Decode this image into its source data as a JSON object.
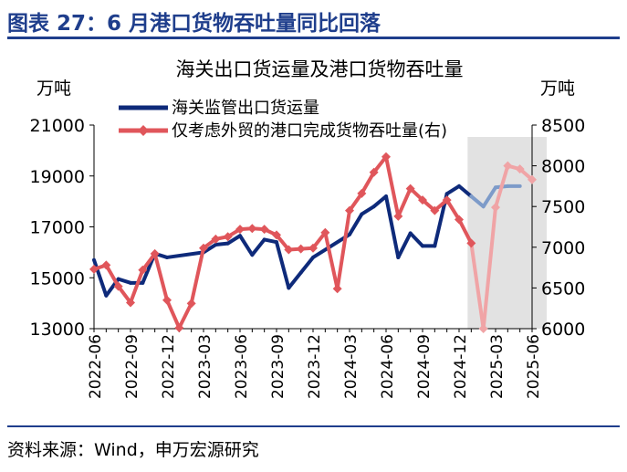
{
  "figure": {
    "title": "图表 27：6 月港口货物吞吐量同比回落",
    "source": "资料来源：Wind，申万宏源研究"
  },
  "chart_data": {
    "type": "line",
    "title": "海关出口货运量及港口货物吞吐量",
    "y_left_unit": "万吨",
    "y_right_unit": "万吨",
    "y_left_range": [
      13000,
      21000
    ],
    "y_left_ticks": [
      "13000",
      "15000",
      "17000",
      "19000",
      "21000"
    ],
    "y_right_range": [
      6000,
      8500
    ],
    "y_right_ticks": [
      "6000",
      "6500",
      "7000",
      "7500",
      "8000",
      "8500"
    ],
    "x_tick_labels": [
      "2022-06",
      "2022-09",
      "2022-12",
      "2023-03",
      "2023-06",
      "2023-09",
      "2023-12",
      "2024-03",
      "2024-06",
      "2024-09",
      "2024-12",
      "2025-03",
      "2025-06"
    ],
    "x": [
      "2022-06",
      "2022-07",
      "2022-08",
      "2022-09",
      "2022-10",
      "2022-11",
      "2022-12",
      "2023-01",
      "2023-02",
      "2023-03",
      "2023-04",
      "2023-05",
      "2023-06",
      "2023-07",
      "2023-08",
      "2023-09",
      "2023-10",
      "2023-11",
      "2023-12",
      "2024-01",
      "2024-02",
      "2024-03",
      "2024-04",
      "2024-05",
      "2024-06",
      "2024-07",
      "2024-08",
      "2024-09",
      "2024-10",
      "2024-11",
      "2024-12",
      "2025-01",
      "2025-02",
      "2025-03",
      "2025-04",
      "2025-05",
      "2025-06"
    ],
    "shaded_range": [
      "2025-01",
      "2025-06"
    ],
    "legend_position": "top-left",
    "series": [
      {
        "name": "海关监管出口货运量",
        "axis": "left",
        "color": "#0e2a7a",
        "faded_color": "#7d9bc9",
        "marker": "none",
        "values": [
          15700,
          14300,
          14950,
          14800,
          14800,
          15950,
          15800,
          null,
          null,
          16000,
          16300,
          16350,
          16650,
          15900,
          16500,
          16400,
          14600,
          15200,
          15800,
          null,
          null,
          16700,
          17500,
          17800,
          18200,
          15800,
          16750,
          16250,
          16250,
          18300,
          18600,
          18200,
          17800,
          18550,
          18600,
          18600,
          null
        ]
      },
      {
        "name": "仅考虑外贸的港口完成货物吞吐量(右)",
        "axis": "right",
        "color": "#e0565b",
        "faded_color": "#f0a4a6",
        "marker": "diamond",
        "values": [
          6730,
          6780,
          6520,
          6320,
          6720,
          6920,
          6350,
          6010,
          6310,
          6990,
          7100,
          7130,
          7220,
          7230,
          7220,
          7150,
          6970,
          6980,
          6990,
          7180,
          6490,
          7450,
          7660,
          7920,
          8110,
          7380,
          7720,
          7580,
          7450,
          7580,
          7340,
          7050,
          6000,
          7490,
          8000,
          7960,
          7830
        ]
      }
    ]
  }
}
